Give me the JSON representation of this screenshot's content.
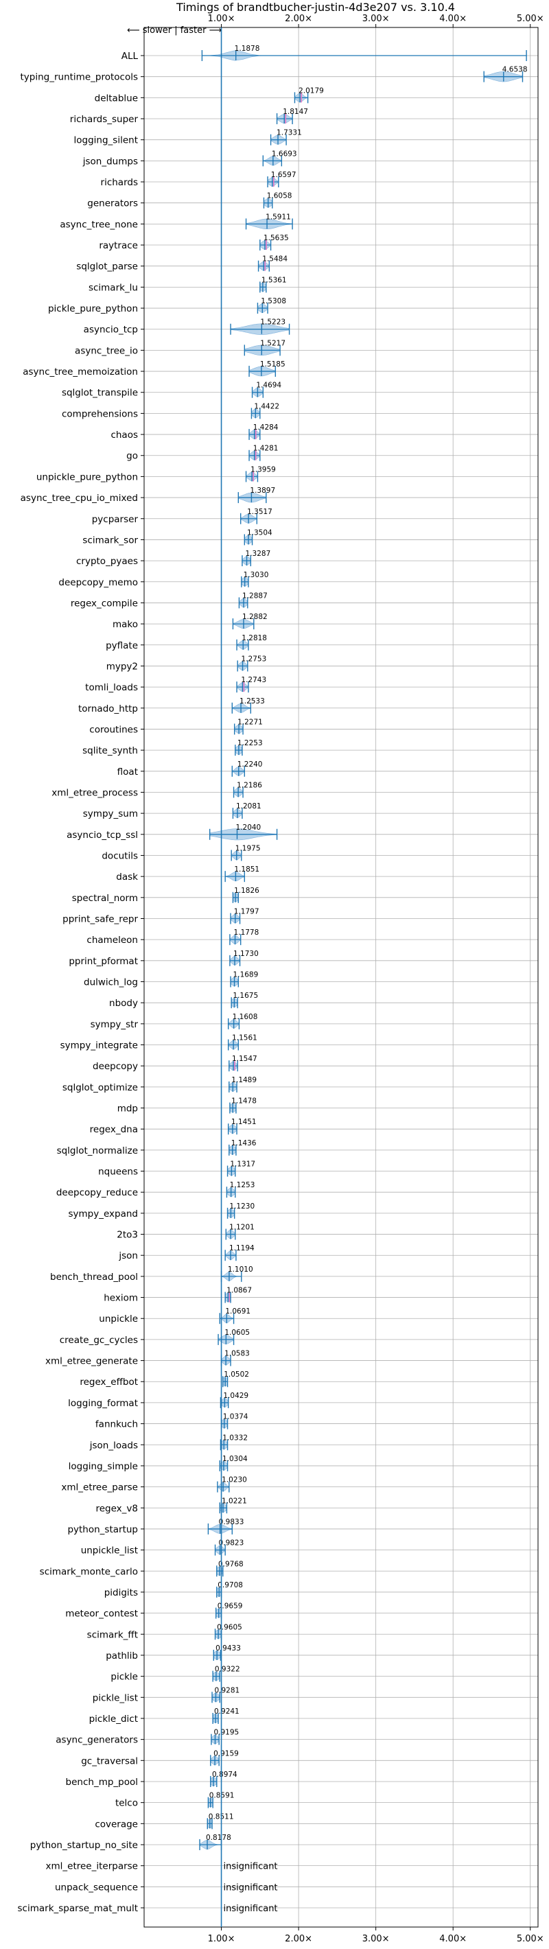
{
  "chart_data": {
    "type": "violin",
    "title": "Timings of brandtbucher-justin-4d3e207 vs. 3.10.4",
    "direction_label": "⟵ slower | faster ⟶",
    "xlim": [
      0.0,
      5.1
    ],
    "x_ticks": [
      1.0,
      2.0,
      3.0,
      4.0,
      5.0
    ],
    "x_tick_labels": [
      "1.00×",
      "2.00×",
      "3.00×",
      "4.00×",
      "5.00×"
    ],
    "reference_x": 1.0,
    "grid": true,
    "colors": {
      "violin": "#7fb2dd",
      "median": "#1f77b4",
      "mean_significant": "#e377c2",
      "axis": "#000000",
      "grid": "#b0b0b0"
    },
    "benchmarks": [
      {
        "name": "ALL",
        "value": 1.1878,
        "label": "1.1878",
        "min": 0.75,
        "max": 4.95,
        "spread": 0.18,
        "significant": false
      },
      {
        "name": "typing_runtime_protocols",
        "value": 4.6538,
        "label": "4.6538",
        "min": 4.4,
        "max": 4.9,
        "spread": 0.2,
        "significant": false
      },
      {
        "name": "deltablue",
        "value": 2.0179,
        "label": "2.0179",
        "min": 1.95,
        "max": 2.12,
        "spread": 0.06,
        "significant": true
      },
      {
        "name": "richards_super",
        "value": 1.8147,
        "label": "1.8147",
        "min": 1.72,
        "max": 1.92,
        "spread": 0.08,
        "significant": true
      },
      {
        "name": "logging_silent",
        "value": 1.7331,
        "label": "1.7331",
        "min": 1.64,
        "max": 1.84,
        "spread": 0.08,
        "significant": false
      },
      {
        "name": "json_dumps",
        "value": 1.6693,
        "label": "1.6693",
        "min": 1.54,
        "max": 1.78,
        "spread": 0.08,
        "significant": false
      },
      {
        "name": "richards",
        "value": 1.6597,
        "label": "1.6597",
        "min": 1.6,
        "max": 1.74,
        "spread": 0.06,
        "significant": true
      },
      {
        "name": "generators",
        "value": 1.6058,
        "label": "1.6058",
        "min": 1.55,
        "max": 1.66,
        "spread": 0.06,
        "significant": false
      },
      {
        "name": "async_tree_none",
        "value": 1.5911,
        "label": "1.5911",
        "min": 1.32,
        "max": 1.92,
        "spread": 0.2,
        "significant": false
      },
      {
        "name": "raytrace",
        "value": 1.5635,
        "label": "1.5635",
        "min": 1.5,
        "max": 1.64,
        "spread": 0.06,
        "significant": true
      },
      {
        "name": "sqlglot_parse",
        "value": 1.5484,
        "label": "1.5484",
        "min": 1.48,
        "max": 1.62,
        "spread": 0.06,
        "significant": true
      },
      {
        "name": "scimark_lu",
        "value": 1.5361,
        "label": "1.5361",
        "min": 1.5,
        "max": 1.58,
        "spread": 0.05,
        "significant": false
      },
      {
        "name": "pickle_pure_python",
        "value": 1.5308,
        "label": "1.5308",
        "min": 1.47,
        "max": 1.6,
        "spread": 0.06,
        "significant": false
      },
      {
        "name": "asyncio_tcp",
        "value": 1.5223,
        "label": "1.5223",
        "min": 1.12,
        "max": 1.88,
        "spread": 0.28,
        "significant": false
      },
      {
        "name": "async_tree_io",
        "value": 1.5217,
        "label": "1.5217",
        "min": 1.3,
        "max": 1.76,
        "spread": 0.2,
        "significant": false
      },
      {
        "name": "async_tree_memoization",
        "value": 1.5185,
        "label": "1.5185",
        "min": 1.36,
        "max": 1.7,
        "spread": 0.14,
        "significant": false
      },
      {
        "name": "sqlglot_transpile",
        "value": 1.4694,
        "label": "1.4694",
        "min": 1.4,
        "max": 1.54,
        "spread": 0.06,
        "significant": false
      },
      {
        "name": "comprehensions",
        "value": 1.4422,
        "label": "1.4422",
        "min": 1.39,
        "max": 1.5,
        "spread": 0.05,
        "significant": false
      },
      {
        "name": "chaos",
        "value": 1.4284,
        "label": "1.4284",
        "min": 1.36,
        "max": 1.5,
        "spread": 0.06,
        "significant": true
      },
      {
        "name": "go",
        "value": 1.4281,
        "label": "1.4281",
        "min": 1.36,
        "max": 1.5,
        "spread": 0.06,
        "significant": true
      },
      {
        "name": "unpickle_pure_python",
        "value": 1.3959,
        "label": "1.3959",
        "min": 1.32,
        "max": 1.47,
        "spread": 0.06,
        "significant": true
      },
      {
        "name": "async_tree_cpu_io_mixed",
        "value": 1.3897,
        "label": "1.3897",
        "min": 1.22,
        "max": 1.58,
        "spread": 0.14,
        "significant": false
      },
      {
        "name": "pycparser",
        "value": 1.3517,
        "label": "1.3517",
        "min": 1.25,
        "max": 1.46,
        "spread": 0.08,
        "significant": false
      },
      {
        "name": "scimark_sor",
        "value": 1.3504,
        "label": "1.3504",
        "min": 1.3,
        "max": 1.4,
        "spread": 0.05,
        "significant": false
      },
      {
        "name": "crypto_pyaes",
        "value": 1.3287,
        "label": "1.3287",
        "min": 1.27,
        "max": 1.38,
        "spread": 0.05,
        "significant": false
      },
      {
        "name": "deepcopy_memo",
        "value": 1.303,
        "label": "1.3030",
        "min": 1.26,
        "max": 1.35,
        "spread": 0.04,
        "significant": false
      },
      {
        "name": "regex_compile",
        "value": 1.2887,
        "label": "1.2887",
        "min": 1.23,
        "max": 1.34,
        "spread": 0.05,
        "significant": false
      },
      {
        "name": "mako",
        "value": 1.2882,
        "label": "1.2882",
        "min": 1.15,
        "max": 1.42,
        "spread": 0.1,
        "significant": false
      },
      {
        "name": "pyflate",
        "value": 1.2818,
        "label": "1.2818",
        "min": 1.2,
        "max": 1.35,
        "spread": 0.06,
        "significant": false
      },
      {
        "name": "mypy2",
        "value": 1.2753,
        "label": "1.2753",
        "min": 1.21,
        "max": 1.34,
        "spread": 0.05,
        "significant": false
      },
      {
        "name": "tomli_loads",
        "value": 1.2743,
        "label": "1.2743",
        "min": 1.2,
        "max": 1.35,
        "spread": 0.06,
        "significant": true
      },
      {
        "name": "tornado_http",
        "value": 1.2533,
        "label": "1.2533",
        "min": 1.14,
        "max": 1.38,
        "spread": 0.08,
        "significant": false
      },
      {
        "name": "coroutines",
        "value": 1.2271,
        "label": "1.2271",
        "min": 1.17,
        "max": 1.28,
        "spread": 0.05,
        "significant": false
      },
      {
        "name": "sqlite_synth",
        "value": 1.2253,
        "label": "1.2253",
        "min": 1.18,
        "max": 1.27,
        "spread": 0.04,
        "significant": false
      },
      {
        "name": "float",
        "value": 1.224,
        "label": "1.2240",
        "min": 1.14,
        "max": 1.3,
        "spread": 0.06,
        "significant": false
      },
      {
        "name": "xml_etree_process",
        "value": 1.2186,
        "label": "1.2186",
        "min": 1.16,
        "max": 1.28,
        "spread": 0.05,
        "significant": false
      },
      {
        "name": "sympy_sum",
        "value": 1.2081,
        "label": "1.2081",
        "min": 1.15,
        "max": 1.27,
        "spread": 0.05,
        "significant": false
      },
      {
        "name": "asyncio_tcp_ssl",
        "value": 1.204,
        "label": "1.2040",
        "min": 0.85,
        "max": 1.72,
        "spread": 0.32,
        "significant": false
      },
      {
        "name": "docutils",
        "value": 1.1975,
        "label": "1.1975",
        "min": 1.13,
        "max": 1.26,
        "spread": 0.05,
        "significant": false
      },
      {
        "name": "dask",
        "value": 1.1851,
        "label": "1.1851",
        "min": 1.05,
        "max": 1.3,
        "spread": 0.08,
        "significant": false
      },
      {
        "name": "spectral_norm",
        "value": 1.1826,
        "label": "1.1826",
        "min": 1.15,
        "max": 1.22,
        "spread": 0.04,
        "significant": false
      },
      {
        "name": "pprint_safe_repr",
        "value": 1.1797,
        "label": "1.1797",
        "min": 1.12,
        "max": 1.24,
        "spread": 0.05,
        "significant": false
      },
      {
        "name": "chameleon",
        "value": 1.1778,
        "label": "1.1778",
        "min": 1.11,
        "max": 1.25,
        "spread": 0.05,
        "significant": false
      },
      {
        "name": "pprint_pformat",
        "value": 1.173,
        "label": "1.1730",
        "min": 1.11,
        "max": 1.24,
        "spread": 0.05,
        "significant": false
      },
      {
        "name": "dulwich_log",
        "value": 1.1689,
        "label": "1.1689",
        "min": 1.12,
        "max": 1.22,
        "spread": 0.04,
        "significant": false
      },
      {
        "name": "nbody",
        "value": 1.1675,
        "label": "1.1675",
        "min": 1.13,
        "max": 1.21,
        "spread": 0.04,
        "significant": false
      },
      {
        "name": "sympy_str",
        "value": 1.1608,
        "label": "1.1608",
        "min": 1.09,
        "max": 1.23,
        "spread": 0.05,
        "significant": false
      },
      {
        "name": "sympy_integrate",
        "value": 1.1561,
        "label": "1.1561",
        "min": 1.09,
        "max": 1.22,
        "spread": 0.05,
        "significant": false
      },
      {
        "name": "deepcopy",
        "value": 1.1547,
        "label": "1.1547",
        "min": 1.1,
        "max": 1.21,
        "spread": 0.05,
        "significant": true
      },
      {
        "name": "sqlglot_optimize",
        "value": 1.1489,
        "label": "1.1489",
        "min": 1.1,
        "max": 1.2,
        "spread": 0.04,
        "significant": false
      },
      {
        "name": "mdp",
        "value": 1.1478,
        "label": "1.1478",
        "min": 1.11,
        "max": 1.19,
        "spread": 0.04,
        "significant": false
      },
      {
        "name": "regex_dna",
        "value": 1.1451,
        "label": "1.1451",
        "min": 1.09,
        "max": 1.2,
        "spread": 0.04,
        "significant": false
      },
      {
        "name": "sqlglot_normalize",
        "value": 1.1436,
        "label": "1.1436",
        "min": 1.1,
        "max": 1.19,
        "spread": 0.04,
        "significant": false
      },
      {
        "name": "nqueens",
        "value": 1.1317,
        "label": "1.1317",
        "min": 1.08,
        "max": 1.18,
        "spread": 0.04,
        "significant": false
      },
      {
        "name": "deepcopy_reduce",
        "value": 1.1253,
        "label": "1.1253",
        "min": 1.07,
        "max": 1.18,
        "spread": 0.04,
        "significant": false
      },
      {
        "name": "sympy_expand",
        "value": 1.123,
        "label": "1.1230",
        "min": 1.08,
        "max": 1.17,
        "spread": 0.04,
        "significant": false
      },
      {
        "name": "2to3",
        "value": 1.1201,
        "label": "1.1201",
        "min": 1.06,
        "max": 1.18,
        "spread": 0.04,
        "significant": false
      },
      {
        "name": "json",
        "value": 1.1194,
        "label": "1.1194",
        "min": 1.05,
        "max": 1.19,
        "spread": 0.05,
        "significant": false
      },
      {
        "name": "bench_thread_pool",
        "value": 1.101,
        "label": "1.1010",
        "min": 1.0,
        "max": 1.26,
        "spread": 0.06,
        "significant": false
      },
      {
        "name": "hexiom",
        "value": 1.0867,
        "label": "1.0867",
        "min": 1.05,
        "max": 1.12,
        "spread": 0.04,
        "significant": true
      },
      {
        "name": "unpickle",
        "value": 1.0691,
        "label": "1.0691",
        "min": 0.98,
        "max": 1.16,
        "spread": 0.05,
        "significant": false
      },
      {
        "name": "create_gc_cycles",
        "value": 1.0605,
        "label": "1.0605",
        "min": 0.96,
        "max": 1.16,
        "spread": 0.08,
        "significant": false
      },
      {
        "name": "xml_etree_generate",
        "value": 1.0583,
        "label": "1.0583",
        "min": 1.0,
        "max": 1.12,
        "spread": 0.04,
        "significant": false
      },
      {
        "name": "regex_effbot",
        "value": 1.0502,
        "label": "1.0502",
        "min": 1.02,
        "max": 1.08,
        "spread": 0.03,
        "significant": false
      },
      {
        "name": "logging_format",
        "value": 1.0429,
        "label": "1.0429",
        "min": 0.99,
        "max": 1.09,
        "spread": 0.04,
        "significant": false
      },
      {
        "name": "fannkuch",
        "value": 1.0374,
        "label": "1.0374",
        "min": 1.0,
        "max": 1.08,
        "spread": 0.03,
        "significant": false
      },
      {
        "name": "json_loads",
        "value": 1.0332,
        "label": "1.0332",
        "min": 0.99,
        "max": 1.08,
        "spread": 0.03,
        "significant": false
      },
      {
        "name": "logging_simple",
        "value": 1.0304,
        "label": "1.0304",
        "min": 0.98,
        "max": 1.08,
        "spread": 0.04,
        "significant": false
      },
      {
        "name": "xml_etree_parse",
        "value": 1.023,
        "label": "1.0230",
        "min": 0.95,
        "max": 1.1,
        "spread": 0.05,
        "significant": false
      },
      {
        "name": "regex_v8",
        "value": 1.0221,
        "label": "1.0221",
        "min": 0.98,
        "max": 1.07,
        "spread": 0.03,
        "significant": false
      },
      {
        "name": "python_startup",
        "value": 0.9833,
        "label": "0.9833",
        "min": 0.83,
        "max": 1.14,
        "spread": 0.1,
        "significant": false
      },
      {
        "name": "unpickle_list",
        "value": 0.9823,
        "label": "0.9823",
        "min": 0.92,
        "max": 1.05,
        "spread": 0.04,
        "significant": false
      },
      {
        "name": "scimark_monte_carlo",
        "value": 0.9768,
        "label": "0.9768",
        "min": 0.94,
        "max": 1.02,
        "spread": 0.03,
        "significant": false
      },
      {
        "name": "pidigits",
        "value": 0.9708,
        "label": "0.9708",
        "min": 0.94,
        "max": 1.0,
        "spread": 0.03,
        "significant": false
      },
      {
        "name": "meteor_contest",
        "value": 0.9659,
        "label": "0.9659",
        "min": 0.93,
        "max": 1.0,
        "spread": 0.03,
        "significant": false
      },
      {
        "name": "scimark_fft",
        "value": 0.9605,
        "label": "0.9605",
        "min": 0.92,
        "max": 1.0,
        "spread": 0.03,
        "significant": false
      },
      {
        "name": "pathlib",
        "value": 0.9433,
        "label": "0.9433",
        "min": 0.9,
        "max": 0.99,
        "spread": 0.03,
        "significant": false
      },
      {
        "name": "pickle",
        "value": 0.9322,
        "label": "0.9322",
        "min": 0.89,
        "max": 0.98,
        "spread": 0.03,
        "significant": false
      },
      {
        "name": "pickle_list",
        "value": 0.9281,
        "label": "0.9281",
        "min": 0.88,
        "max": 0.98,
        "spread": 0.03,
        "significant": false
      },
      {
        "name": "pickle_dict",
        "value": 0.9241,
        "label": "0.9241",
        "min": 0.89,
        "max": 0.96,
        "spread": 0.03,
        "significant": false
      },
      {
        "name": "async_generators",
        "value": 0.9195,
        "label": "0.9195",
        "min": 0.87,
        "max": 0.97,
        "spread": 0.03,
        "significant": false
      },
      {
        "name": "gc_traversal",
        "value": 0.9159,
        "label": "0.9159",
        "min": 0.86,
        "max": 0.97,
        "spread": 0.03,
        "significant": false
      },
      {
        "name": "bench_mp_pool",
        "value": 0.8974,
        "label": "0.8974",
        "min": 0.86,
        "max": 0.94,
        "spread": 0.03,
        "significant": false
      },
      {
        "name": "telco",
        "value": 0.8591,
        "label": "0.8591",
        "min": 0.83,
        "max": 0.89,
        "spread": 0.03,
        "significant": false
      },
      {
        "name": "coverage",
        "value": 0.8511,
        "label": "0.8511",
        "min": 0.82,
        "max": 0.88,
        "spread": 0.03,
        "significant": false
      },
      {
        "name": "python_startup_no_site",
        "value": 0.8178,
        "label": "0.8178",
        "min": 0.72,
        "max": 1.0,
        "spread": 0.08,
        "significant": false
      },
      {
        "name": "xml_etree_iterparse",
        "value": null,
        "label": "insignificant",
        "significant": false
      },
      {
        "name": "unpack_sequence",
        "value": null,
        "label": "insignificant",
        "significant": false
      },
      {
        "name": "scimark_sparse_mat_mult",
        "value": null,
        "label": "insignificant",
        "significant": false
      }
    ]
  }
}
